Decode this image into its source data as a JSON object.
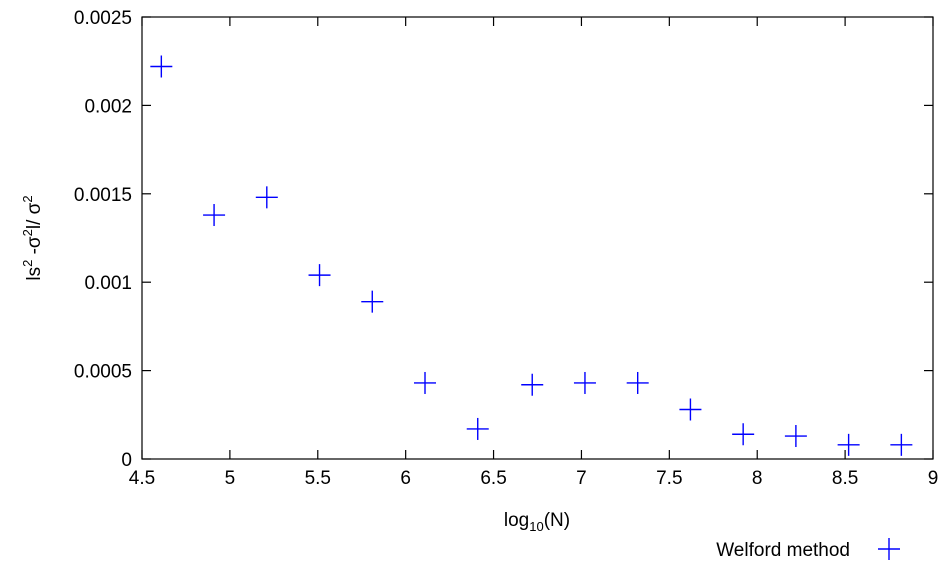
{
  "chart_data": {
    "type": "scatter",
    "title": "",
    "xlabel": {
      "base": "log",
      "subscript": "10",
      "rest": "(N)"
    },
    "ylabel": {
      "p1": "ls",
      "sup1": "2",
      "p2": " -σ",
      "sup2": "2",
      "p3": "l/ σ",
      "sup3": "2"
    },
    "xlim": [
      4.5,
      9
    ],
    "ylim": [
      0,
      0.0025
    ],
    "x_ticks": [
      4.5,
      5,
      5.5,
      6,
      6.5,
      7,
      7.5,
      8,
      8.5,
      9
    ],
    "x_tick_labels": [
      "4.5",
      "5",
      "5.5",
      "6",
      "6.5",
      "7",
      "7.5",
      "8",
      "8.5",
      "9"
    ],
    "y_ticks": [
      0,
      0.0005,
      0.001,
      0.0015,
      0.002,
      0.0025
    ],
    "y_tick_labels": [
      "0",
      "0.0005",
      "0.001",
      "0.0015",
      "0.002",
      "0.0025"
    ],
    "grid": false,
    "legend_position": "bottom-right, outside plot",
    "series": [
      {
        "name": "Welford method",
        "color": "#0000ff",
        "marker": "plus",
        "points": [
          {
            "x": 4.61,
            "y": 0.00222
          },
          {
            "x": 4.91,
            "y": 0.00138
          },
          {
            "x": 5.21,
            "y": 0.00148
          },
          {
            "x": 5.51,
            "y": 0.00104
          },
          {
            "x": 5.81,
            "y": 0.00089
          },
          {
            "x": 6.11,
            "y": 0.00043
          },
          {
            "x": 6.41,
            "y": 0.00017
          },
          {
            "x": 6.72,
            "y": 0.00042
          },
          {
            "x": 7.02,
            "y": 0.00043
          },
          {
            "x": 7.32,
            "y": 0.00043
          },
          {
            "x": 7.62,
            "y": 0.00028
          },
          {
            "x": 7.92,
            "y": 0.00014
          },
          {
            "x": 8.22,
            "y": 0.00013
          },
          {
            "x": 8.52,
            "y": 8e-05
          },
          {
            "x": 8.82,
            "y": 8e-05
          }
        ]
      }
    ]
  }
}
